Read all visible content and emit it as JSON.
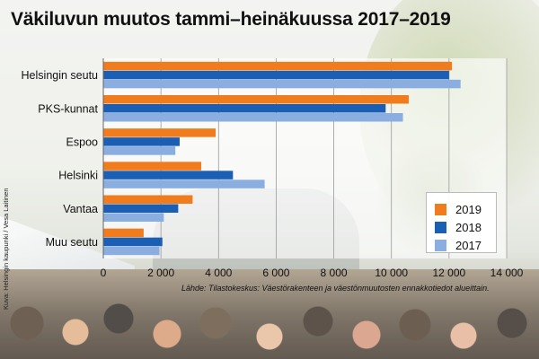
{
  "title": "Väkiluvun muutos tammi–heinäkuussa 2017–2019",
  "credit": "Kuva: Helsingin kaupunki / Vesa Laitinen",
  "source": "Lähde: Tilastokeskus: Väestörakenteen ja väestönmuutosten ennakkotiedot alueittain.",
  "colors": {
    "2019": "#f07c1e",
    "2018": "#1a5fb4",
    "2017": "#8aaee0"
  },
  "chart_data": {
    "type": "bar",
    "orientation": "horizontal",
    "categories": [
      "Helsingin seutu",
      "PKS-kunnat",
      "Espoo",
      "Helsinki",
      "Vantaa",
      "Muu seutu"
    ],
    "series": [
      {
        "name": "2019",
        "values": [
          12100,
          10600,
          3900,
          3400,
          3100,
          1400
        ]
      },
      {
        "name": "2018",
        "values": [
          12000,
          9800,
          2650,
          4500,
          2600,
          2050
        ]
      },
      {
        "name": "2017",
        "values": [
          12400,
          10400,
          2500,
          5600,
          2100,
          1950
        ]
      }
    ],
    "xlim": [
      0,
      14000
    ],
    "xticks": [
      0,
      2000,
      4000,
      6000,
      8000,
      10000,
      12000,
      14000
    ],
    "xtick_labels": [
      "0",
      "2 000",
      "4 000",
      "6 000",
      "8 000",
      "10 000",
      "12 000",
      "14 000"
    ],
    "grid": true,
    "legend": {
      "position": "right",
      "entries": [
        "2019",
        "2018",
        "2017"
      ]
    }
  }
}
